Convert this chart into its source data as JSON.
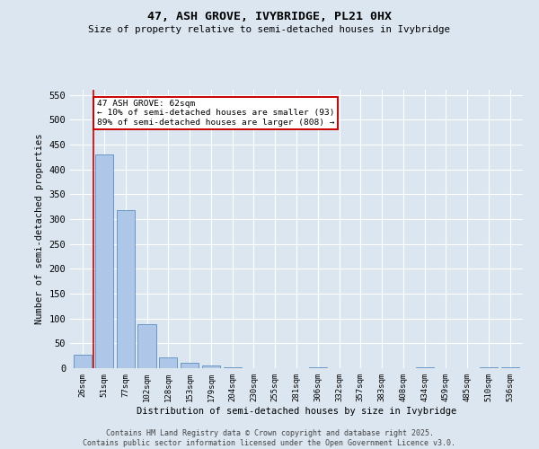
{
  "title": "47, ASH GROVE, IVYBRIDGE, PL21 0HX",
  "subtitle": "Size of property relative to semi-detached houses in Ivybridge",
  "xlabel": "Distribution of semi-detached houses by size in Ivybridge",
  "ylabel": "Number of semi-detached properties",
  "categories": [
    "26sqm",
    "51sqm",
    "77sqm",
    "102sqm",
    "128sqm",
    "153sqm",
    "179sqm",
    "204sqm",
    "230sqm",
    "255sqm",
    "281sqm",
    "306sqm",
    "332sqm",
    "357sqm",
    "383sqm",
    "408sqm",
    "434sqm",
    "459sqm",
    "485sqm",
    "510sqm",
    "536sqm"
  ],
  "values": [
    28,
    430,
    318,
    88,
    22,
    10,
    5,
    2,
    0,
    0,
    0,
    2,
    0,
    0,
    0,
    0,
    2,
    0,
    0,
    2,
    2
  ],
  "bar_color": "#aec6e8",
  "bar_edge_color": "#5a8fc0",
  "red_line_x": 0.5,
  "annotation_text": "47 ASH GROVE: 62sqm\n← 10% of semi-detached houses are smaller (93)\n89% of semi-detached houses are larger (808) →",
  "annotation_box_color": "#ffffff",
  "annotation_box_edge": "#cc0000",
  "red_line_color": "#cc0000",
  "ylim": [
    0,
    560
  ],
  "yticks": [
    0,
    50,
    100,
    150,
    200,
    250,
    300,
    350,
    400,
    450,
    500,
    550
  ],
  "background_color": "#dce6f0",
  "grid_color": "#ffffff",
  "footer_text": "Contains HM Land Registry data © Crown copyright and database right 2025.\nContains public sector information licensed under the Open Government Licence v3.0."
}
